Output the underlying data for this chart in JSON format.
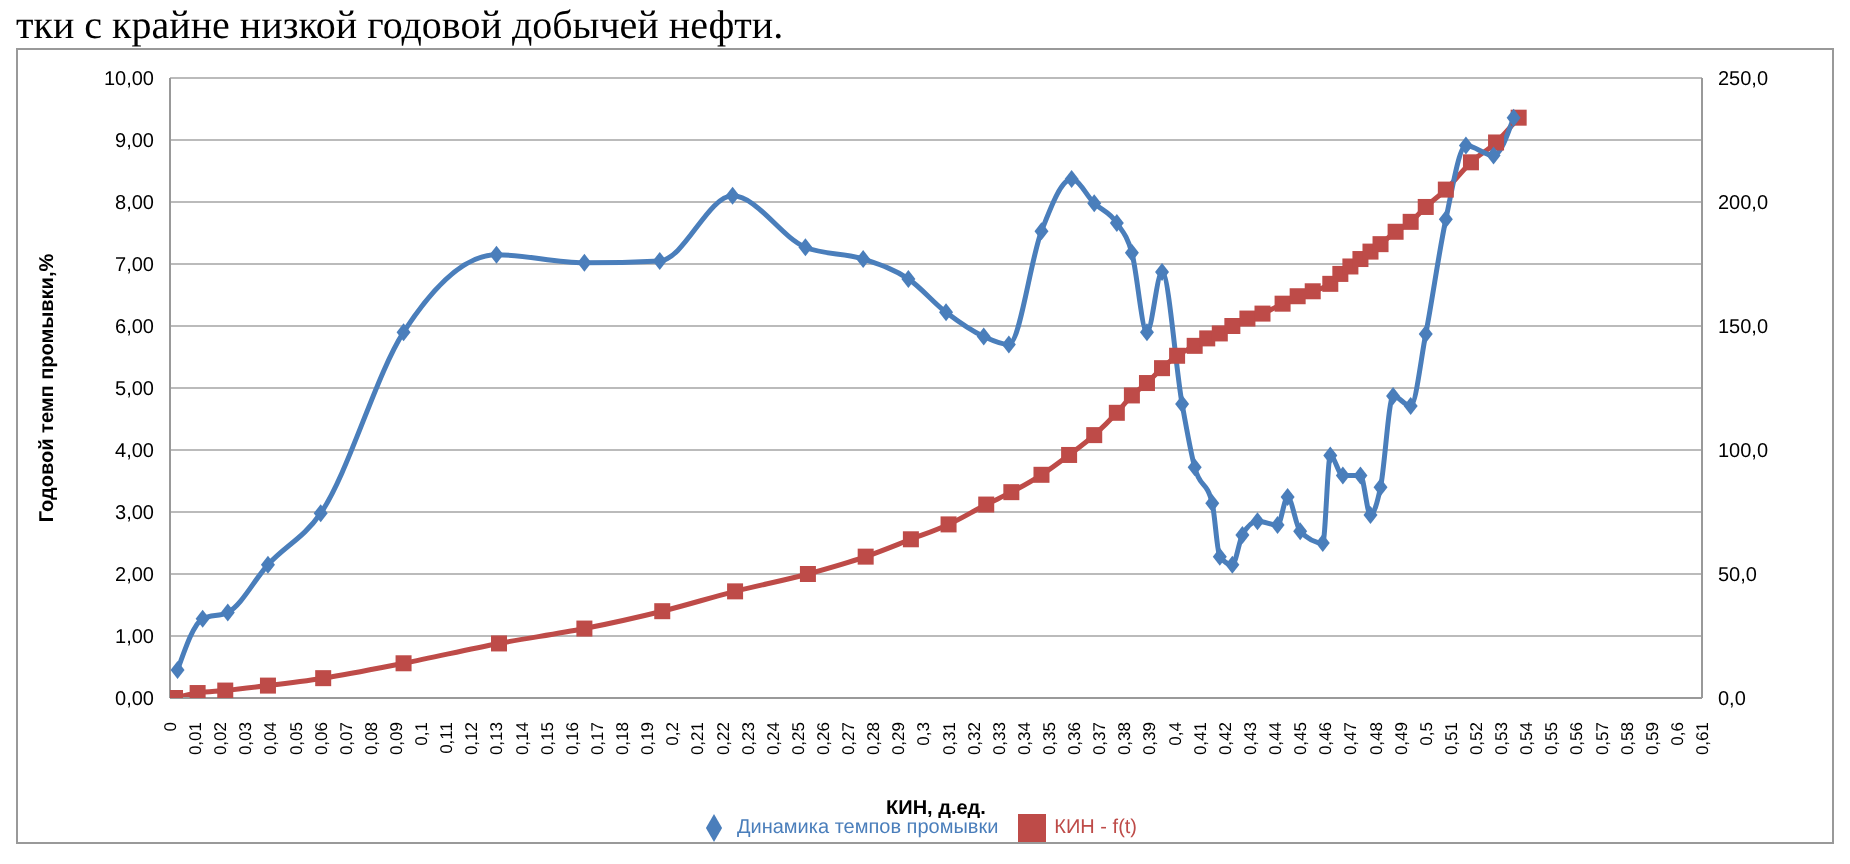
{
  "chart_data": {
    "type": "line",
    "annotations": [
      "тки с крайне низкой годовой добычей нефти."
    ],
    "xlabel": "КИН, д.ед.",
    "ylabel": "Годовой темп промывки,%",
    "xlim": [
      0,
      0.61
    ],
    "xticks": [
      {
        "value": 0,
        "label": "0"
      },
      {
        "value": 0.01,
        "label": "0,01"
      },
      {
        "value": 0.02,
        "label": "0,02"
      },
      {
        "value": 0.03,
        "label": "0,03"
      },
      {
        "value": 0.04,
        "label": "0,04"
      },
      {
        "value": 0.05,
        "label": "0,05"
      },
      {
        "value": 0.06,
        "label": "0,06"
      },
      {
        "value": 0.07,
        "label": "0,07"
      },
      {
        "value": 0.08,
        "label": "0,08"
      },
      {
        "value": 0.09,
        "label": "0,09"
      },
      {
        "value": 0.1,
        "label": "0,1"
      },
      {
        "value": 0.11,
        "label": "0,11"
      },
      {
        "value": 0.12,
        "label": "0,12"
      },
      {
        "value": 0.13,
        "label": "0,13"
      },
      {
        "value": 0.14,
        "label": "0,14"
      },
      {
        "value": 0.15,
        "label": "0,15"
      },
      {
        "value": 0.16,
        "label": "0,16"
      },
      {
        "value": 0.17,
        "label": "0,17"
      },
      {
        "value": 0.18,
        "label": "0,18"
      },
      {
        "value": 0.19,
        "label": "0,19"
      },
      {
        "value": 0.2,
        "label": "0,2"
      },
      {
        "value": 0.21,
        "label": "0,21"
      },
      {
        "value": 0.22,
        "label": "0,22"
      },
      {
        "value": 0.23,
        "label": "0,23"
      },
      {
        "value": 0.24,
        "label": "0,24"
      },
      {
        "value": 0.25,
        "label": "0,25"
      },
      {
        "value": 0.26,
        "label": "0,26"
      },
      {
        "value": 0.27,
        "label": "0,27"
      },
      {
        "value": 0.28,
        "label": "0,28"
      },
      {
        "value": 0.29,
        "label": "0,29"
      },
      {
        "value": 0.3,
        "label": "0,3"
      },
      {
        "value": 0.31,
        "label": "0,31"
      },
      {
        "value": 0.32,
        "label": "0,32"
      },
      {
        "value": 0.33,
        "label": "0,33"
      },
      {
        "value": 0.34,
        "label": "0,34"
      },
      {
        "value": 0.35,
        "label": "0,35"
      },
      {
        "value": 0.36,
        "label": "0,36"
      },
      {
        "value": 0.37,
        "label": "0,37"
      },
      {
        "value": 0.38,
        "label": "0,38"
      },
      {
        "value": 0.39,
        "label": "0,39"
      },
      {
        "value": 0.4,
        "label": "0,4"
      },
      {
        "value": 0.41,
        "label": "0,41"
      },
      {
        "value": 0.42,
        "label": "0,42"
      },
      {
        "value": 0.43,
        "label": "0,43"
      },
      {
        "value": 0.44,
        "label": "0,44"
      },
      {
        "value": 0.45,
        "label": "0,45"
      },
      {
        "value": 0.46,
        "label": "0,46"
      },
      {
        "value": 0.47,
        "label": "0,47"
      },
      {
        "value": 0.48,
        "label": "0,48"
      },
      {
        "value": 0.49,
        "label": "0,49"
      },
      {
        "value": 0.5,
        "label": "0,5"
      },
      {
        "value": 0.51,
        "label": "0,51"
      },
      {
        "value": 0.52,
        "label": "0,52"
      },
      {
        "value": 0.53,
        "label": "0,53"
      },
      {
        "value": 0.54,
        "label": "0,54"
      },
      {
        "value": 0.55,
        "label": "0,55"
      },
      {
        "value": 0.56,
        "label": "0,56"
      },
      {
        "value": 0.57,
        "label": "0,57"
      },
      {
        "value": 0.58,
        "label": "0,58"
      },
      {
        "value": 0.59,
        "label": "0,59"
      },
      {
        "value": 0.6,
        "label": "0,6"
      },
      {
        "value": 0.61,
        "label": "0,61"
      }
    ],
    "ylim": [
      0,
      10
    ],
    "yticks": [
      {
        "value": 0,
        "label": "0,00"
      },
      {
        "value": 1,
        "label": "1,00"
      },
      {
        "value": 2,
        "label": "2,00"
      },
      {
        "value": 3,
        "label": "3,00"
      },
      {
        "value": 4,
        "label": "4,00"
      },
      {
        "value": 5,
        "label": "5,00"
      },
      {
        "value": 6,
        "label": "6,00"
      },
      {
        "value": 7,
        "label": "7,00"
      },
      {
        "value": 8,
        "label": "8,00"
      },
      {
        "value": 9,
        "label": "9,00"
      },
      {
        "value": 10,
        "label": "10,00"
      }
    ],
    "y2lim": [
      0,
      250
    ],
    "y2ticks": [
      {
        "value": 0,
        "label": "0,0"
      },
      {
        "value": 50,
        "label": "50,0"
      },
      {
        "value": 100,
        "label": "100,0"
      },
      {
        "value": 150,
        "label": "150,0"
      },
      {
        "value": 200,
        "label": "200,0"
      },
      {
        "value": 250,
        "label": "250,0"
      }
    ],
    "grid": "y",
    "legend": "bottom",
    "series": [
      {
        "name": "Динамика темпов промывки",
        "color": "#4a7ebb",
        "marker": "diamond",
        "x": [
          0.003,
          0.013,
          0.023,
          0.039,
          0.06,
          0.093,
          0.13,
          0.165,
          0.195,
          0.224,
          0.253,
          0.276,
          0.294,
          0.309,
          0.324,
          0.334,
          0.347,
          0.359,
          0.368,
          0.377,
          0.383,
          0.389,
          0.395,
          0.403,
          0.408,
          0.415,
          0.418,
          0.423,
          0.427,
          0.433,
          0.441,
          0.445,
          0.45,
          0.459,
          0.462,
          0.467,
          0.474,
          0.478,
          0.482,
          0.487,
          0.494,
          0.5,
          0.508,
          0.516,
          0.527,
          0.535
        ],
        "values": [
          0.45,
          1.28,
          1.38,
          2.15,
          2.98,
          5.9,
          7.15,
          7.02,
          7.05,
          8.1,
          7.27,
          7.08,
          6.76,
          6.22,
          5.83,
          5.7,
          7.53,
          8.37,
          7.98,
          7.66,
          7.18,
          5.9,
          6.87,
          4.74,
          3.72,
          3.14,
          2.28,
          2.15,
          2.63,
          2.85,
          2.79,
          3.24,
          2.69,
          2.5,
          3.91,
          3.59,
          3.59,
          2.95,
          3.4,
          4.87,
          4.71,
          5.87,
          7.72,
          8.91,
          8.75,
          9.36
        ]
      },
      {
        "name": "КИН - f(t)",
        "color": "#be4b48",
        "marker": "square",
        "axis": "y2",
        "x": [
          0.002,
          0.011,
          0.022,
          0.039,
          0.061,
          0.093,
          0.131,
          0.165,
          0.196,
          0.225,
          0.254,
          0.277,
          0.295,
          0.31,
          0.325,
          0.335,
          0.347,
          0.358,
          0.368,
          0.377,
          0.383,
          0.389,
          0.395,
          0.401,
          0.408,
          0.413,
          0.418,
          0.423,
          0.429,
          0.435,
          0.443,
          0.449,
          0.455,
          0.462,
          0.466,
          0.47,
          0.474,
          0.478,
          0.482,
          0.488,
          0.494,
          0.5,
          0.508,
          0.518,
          0.528,
          0.537
        ],
        "values": [
          0,
          2,
          3,
          5,
          8,
          14,
          22,
          28,
          35,
          43,
          50,
          57,
          64,
          70,
          78,
          83,
          90,
          98,
          106,
          115,
          122,
          127,
          133,
          138,
          142,
          145,
          147,
          150,
          153,
          155,
          159,
          162,
          164,
          167,
          171,
          174,
          177,
          180,
          183,
          188,
          192,
          198,
          205,
          216,
          224,
          234
        ]
      }
    ]
  }
}
